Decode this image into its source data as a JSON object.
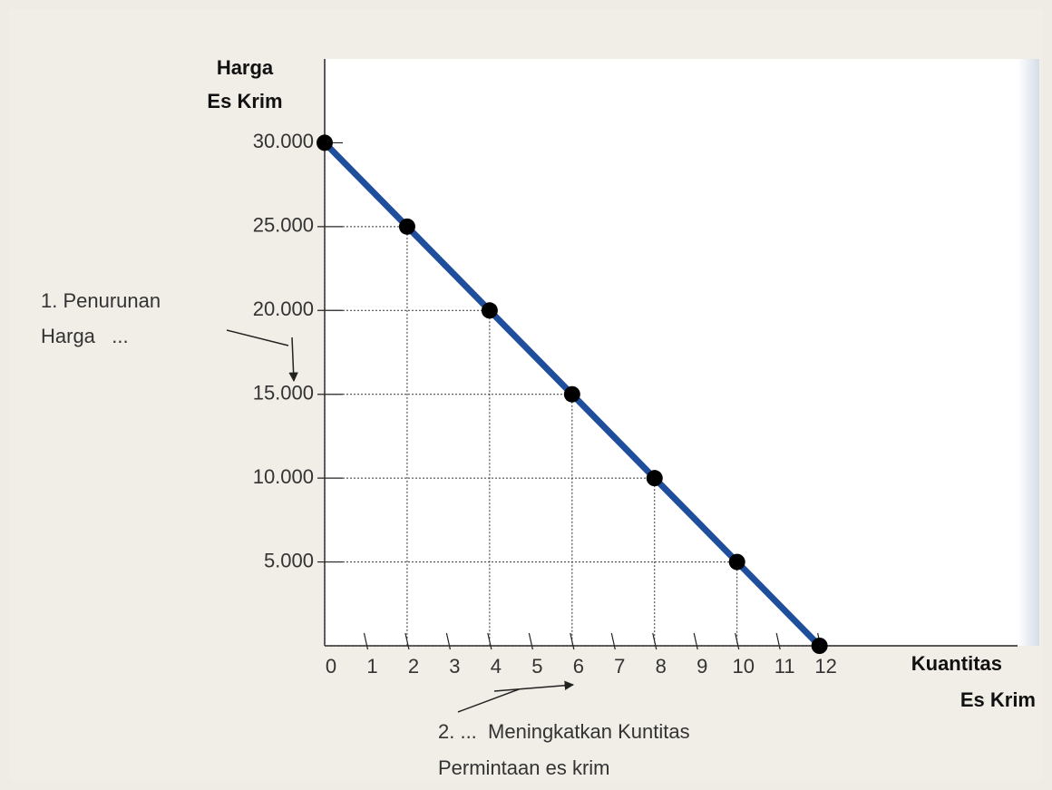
{
  "chart_data": {
    "type": "line",
    "ylabel": [
      "Harga",
      "Es Krim"
    ],
    "xlabel": [
      "Kuantitas",
      "Es Krim"
    ],
    "x": [
      0,
      2,
      4,
      6,
      8,
      10,
      12
    ],
    "series": [
      {
        "color": "#1f4e9c",
        "values": [
          30000,
          25000,
          20000,
          15000,
          10000,
          5000,
          0
        ]
      }
    ],
    "xlim": [
      0,
      17
    ],
    "xticks": [
      0,
      1,
      2,
      3,
      4,
      5,
      6,
      7,
      8,
      9,
      10,
      11,
      12
    ],
    "ylim": [
      0,
      35000
    ],
    "yticks": [
      {
        "value": 5000,
        "label": "5.000"
      },
      {
        "value": 10000,
        "label": "10.000"
      },
      {
        "value": 15000,
        "label": "15.000"
      },
      {
        "value": 20000,
        "label": "20.000"
      },
      {
        "value": 25000,
        "label": "25.000"
      },
      {
        "value": 30000,
        "label": "30.000"
      }
    ],
    "annotations": [
      {
        "lines": [
          "1. Penurunan",
          "Harga   ..."
        ]
      },
      {
        "lines": [
          "2. ...  Meningkatkan Kuntitas",
          "Permintaan es krim"
        ]
      }
    ]
  }
}
